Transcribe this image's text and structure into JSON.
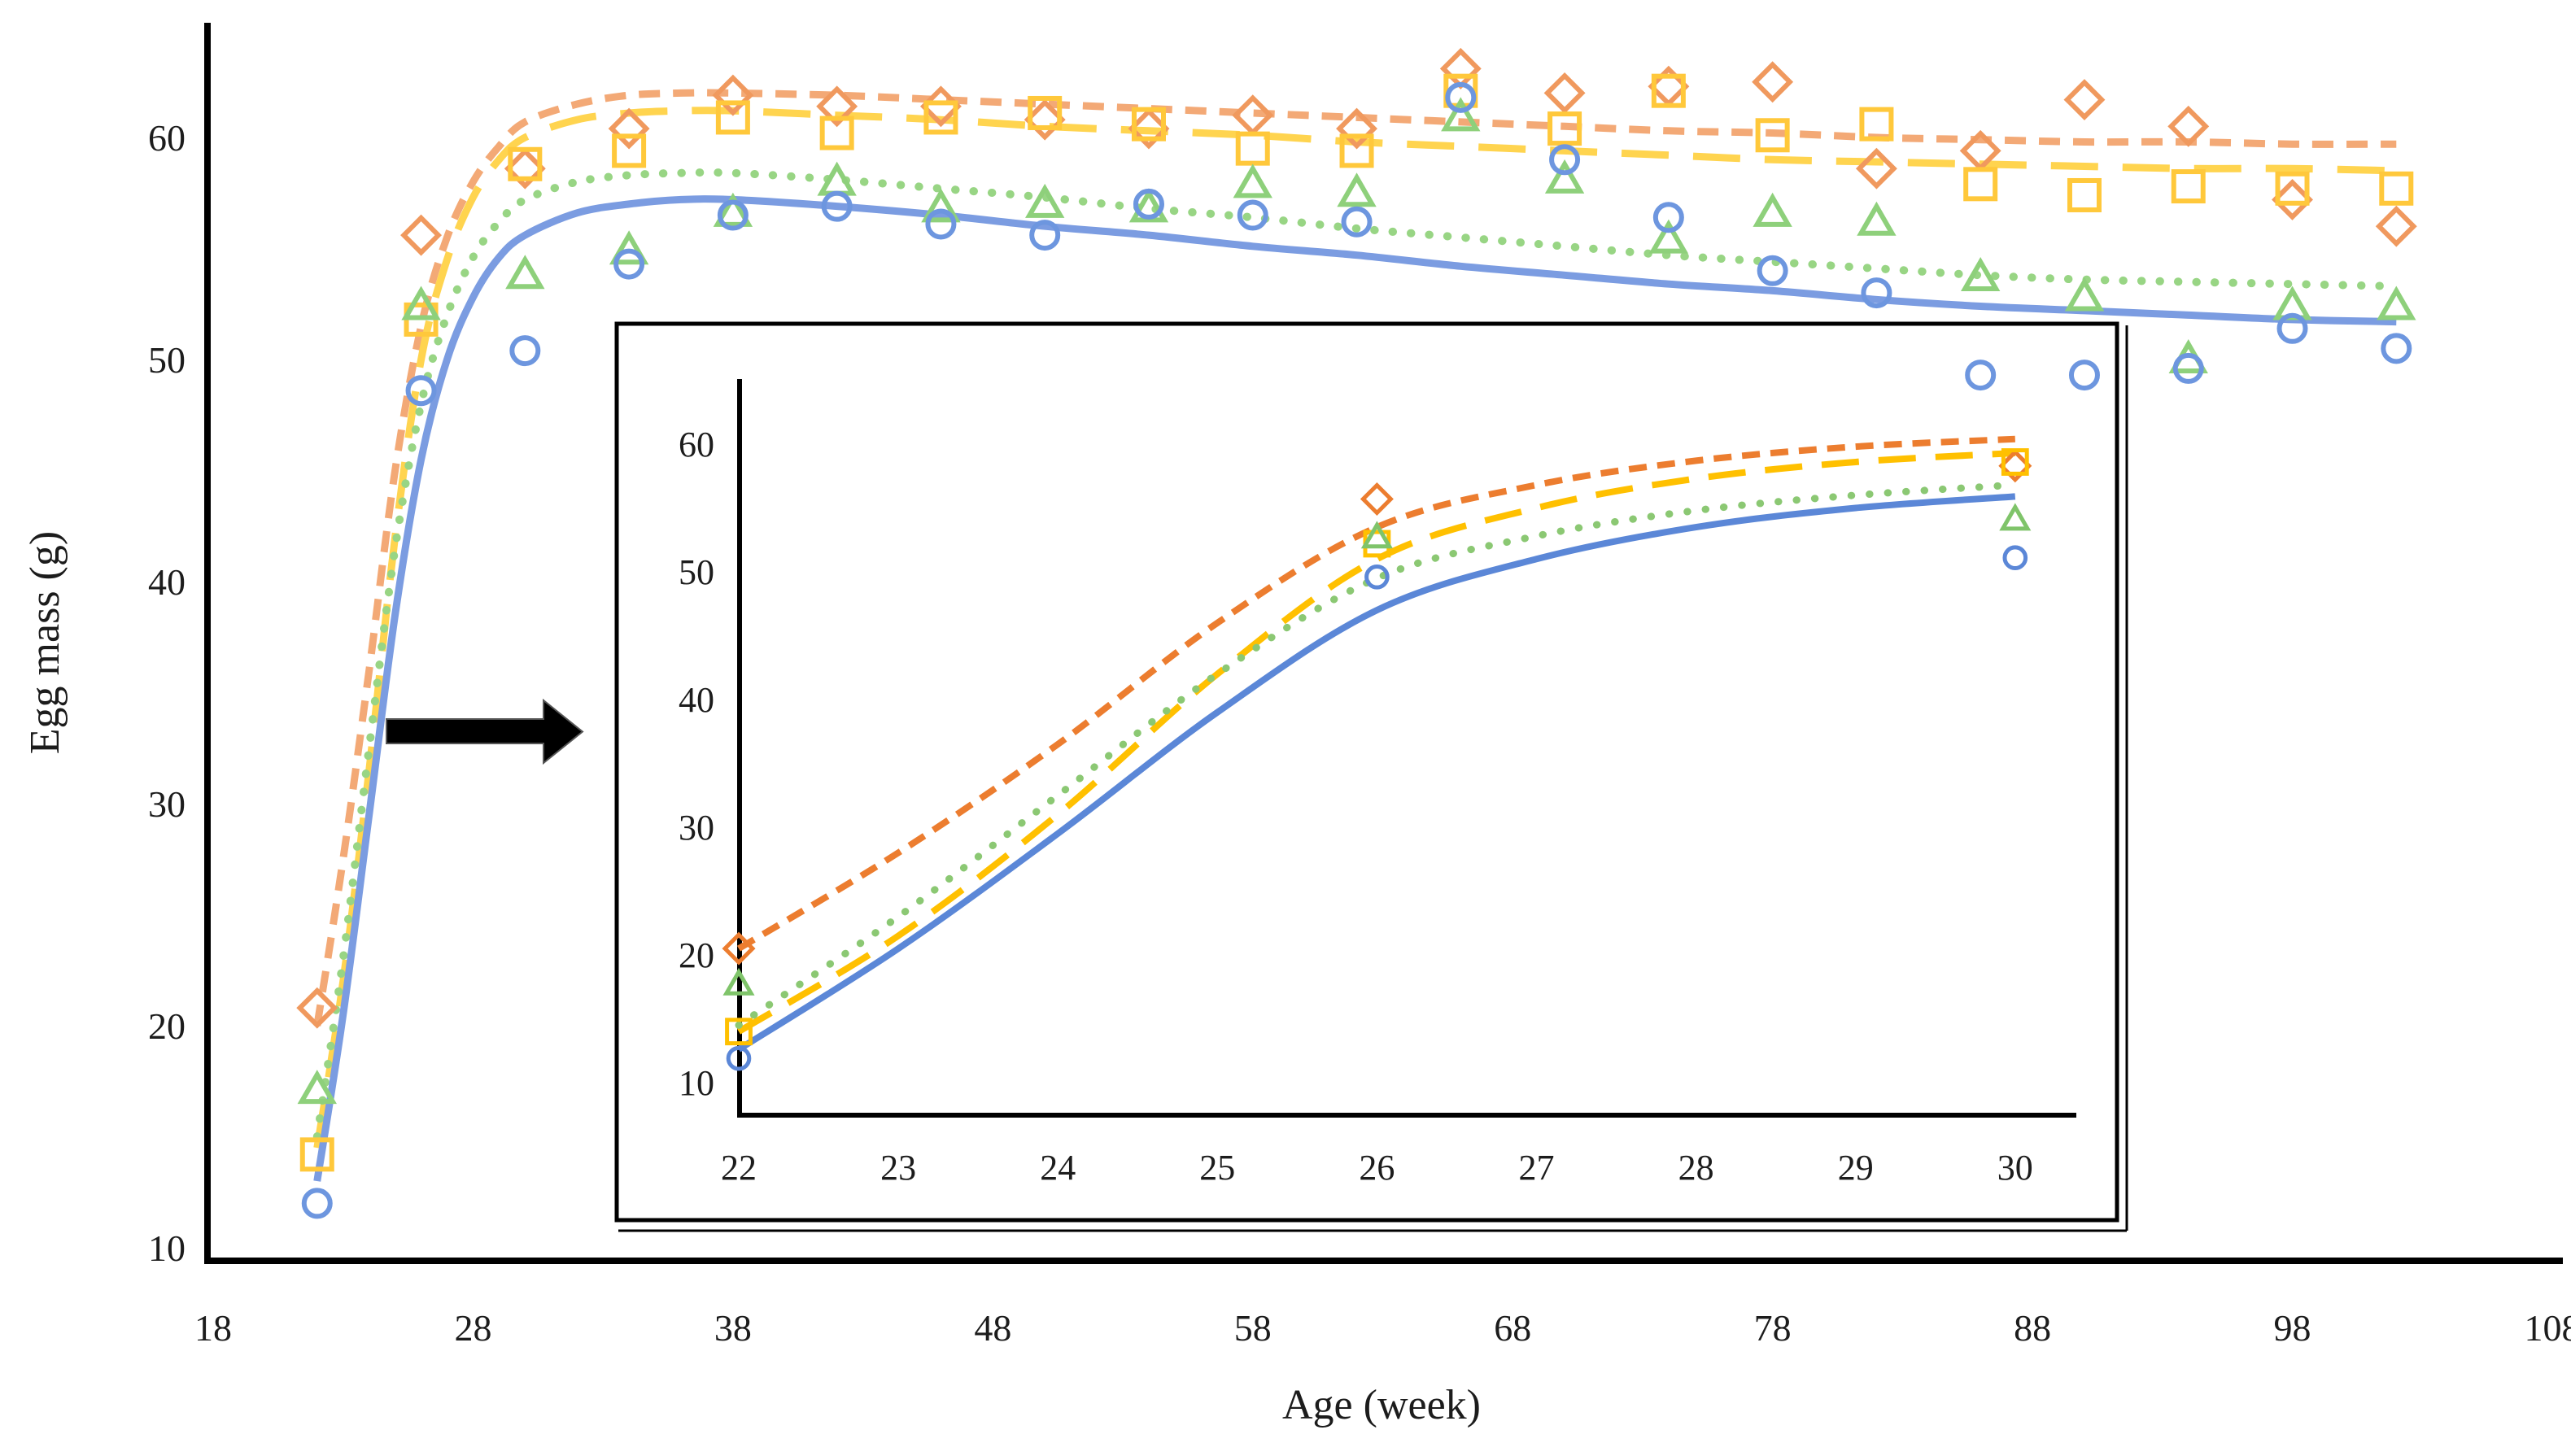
{
  "figure": {
    "background": "#ffffff",
    "arrow_icon_color": "#000000"
  },
  "chart_data": {
    "type": "scatter",
    "description_of_visual": "Egg mass versus age: four scatter series (open markers) with fitted growth curves; magnified inset for weeks 22-30 indicated by a black arrow",
    "main": {
      "xlabel": "Age (week)",
      "ylabel": "Egg mass (g)",
      "x_ticks": [
        18,
        28,
        38,
        48,
        58,
        68,
        78,
        88,
        98,
        108
      ],
      "y_ticks": [
        10,
        20,
        30,
        40,
        50,
        60
      ],
      "xlim": [
        18,
        108
      ],
      "ylim": [
        10,
        65
      ],
      "grid": false,
      "legend": "none",
      "series": [
        {
          "name": "orange-diamond-short-dash",
          "marker": "diamond",
          "line_style": "short-dash",
          "line_color": "#F3A976",
          "marker_color": "#F0995E",
          "points": [
            [
              22,
              20.8
            ],
            [
              26,
              55.6
            ],
            [
              30,
              58.6
            ],
            [
              34,
              60.4
            ],
            [
              38,
              61.9
            ],
            [
              42,
              61.4
            ],
            [
              46,
              61.4
            ],
            [
              50,
              60.8
            ],
            [
              54,
              60.4
            ],
            [
              58,
              61.0
            ],
            [
              62,
              60.4
            ],
            [
              66,
              63.1
            ],
            [
              70,
              62.0
            ],
            [
              74,
              62.3
            ],
            [
              78,
              62.5
            ],
            [
              82,
              58.6
            ],
            [
              86,
              59.4
            ],
            [
              90,
              61.7
            ],
            [
              94,
              60.5
            ],
            [
              98,
              57.2
            ],
            [
              102,
              56.0
            ]
          ],
          "curve": [
            [
              22,
              20.0
            ],
            [
              23,
              27.5
            ],
            [
              24,
              36.0
            ],
            [
              25,
              45.0
            ],
            [
              26,
              51.5
            ],
            [
              27,
              55.5
            ],
            [
              28,
              58.0
            ],
            [
              29,
              59.6
            ],
            [
              30,
              60.7
            ],
            [
              32,
              61.5
            ],
            [
              34,
              61.9
            ],
            [
              36,
              62.0
            ],
            [
              38,
              62.0
            ],
            [
              42,
              61.9
            ],
            [
              46,
              61.7
            ],
            [
              50,
              61.5
            ],
            [
              54,
              61.3
            ],
            [
              58,
              61.1
            ],
            [
              62,
              60.9
            ],
            [
              66,
              60.7
            ],
            [
              70,
              60.5
            ],
            [
              74,
              60.3
            ],
            [
              78,
              60.2
            ],
            [
              82,
              60.0
            ],
            [
              86,
              59.9
            ],
            [
              90,
              59.8
            ],
            [
              94,
              59.8
            ],
            [
              98,
              59.7
            ],
            [
              102,
              59.7
            ]
          ]
        },
        {
          "name": "yellow-square-long-dash",
          "marker": "square",
          "line_style": "long-dash",
          "line_color": "#FFD44F",
          "marker_color": "#FFC83B",
          "points": [
            [
              22,
              14.2
            ],
            [
              26,
              51.8
            ],
            [
              30,
              58.8
            ],
            [
              34,
              59.4
            ],
            [
              38,
              60.9
            ],
            [
              42,
              60.2
            ],
            [
              46,
              60.9
            ],
            [
              50,
              61.1
            ],
            [
              54,
              60.6
            ],
            [
              58,
              59.5
            ],
            [
              62,
              59.4
            ],
            [
              66,
              62.1
            ],
            [
              70,
              60.4
            ],
            [
              74,
              62.1
            ],
            [
              78,
              60.1
            ],
            [
              82,
              60.6
            ],
            [
              86,
              57.9
            ],
            [
              90,
              57.4
            ],
            [
              94,
              57.8
            ],
            [
              98,
              57.7
            ],
            [
              102,
              57.7
            ]
          ],
          "curve": [
            [
              22,
              14.5
            ],
            [
              23,
              22.0
            ],
            [
              24,
              31.5
            ],
            [
              25,
              42.0
            ],
            [
              26,
              50.0
            ],
            [
              27,
              54.5
            ],
            [
              28,
              57.3
            ],
            [
              29,
              59.0
            ],
            [
              30,
              60.0
            ],
            [
              32,
              60.8
            ],
            [
              34,
              61.1
            ],
            [
              36,
              61.2
            ],
            [
              38,
              61.2
            ],
            [
              42,
              61.0
            ],
            [
              46,
              60.8
            ],
            [
              50,
              60.5
            ],
            [
              54,
              60.3
            ],
            [
              58,
              60.1
            ],
            [
              62,
              59.8
            ],
            [
              66,
              59.6
            ],
            [
              70,
              59.4
            ],
            [
              74,
              59.2
            ],
            [
              78,
              59.0
            ],
            [
              82,
              58.9
            ],
            [
              86,
              58.8
            ],
            [
              90,
              58.7
            ],
            [
              94,
              58.6
            ],
            [
              98,
              58.6
            ],
            [
              102,
              58.5
            ]
          ]
        },
        {
          "name": "green-triangle-dotted",
          "marker": "triangle",
          "line_style": "dotted",
          "line_color": "#98D584",
          "marker_color": "#8ED07B",
          "points": [
            [
              22,
              17.1
            ],
            [
              26,
              52.4
            ],
            [
              30,
              53.8
            ],
            [
              34,
              54.9
            ],
            [
              38,
              56.6
            ],
            [
              42,
              58.0
            ],
            [
              46,
              56.8
            ],
            [
              50,
              57.0
            ],
            [
              54,
              56.8
            ],
            [
              58,
              57.9
            ],
            [
              62,
              57.5
            ],
            [
              66,
              60.9
            ],
            [
              70,
              58.1
            ],
            [
              74,
              55.4
            ],
            [
              78,
              56.6
            ],
            [
              82,
              56.2
            ],
            [
              86,
              53.7
            ],
            [
              90,
              52.8
            ],
            [
              94,
              50.0
            ],
            [
              98,
              52.4
            ],
            [
              102,
              52.4
            ]
          ],
          "curve": [
            [
              22,
              15.0
            ],
            [
              23,
              23.0
            ],
            [
              24,
              32.5
            ],
            [
              25,
              41.5
            ],
            [
              26,
              48.0
            ],
            [
              27,
              52.0
            ],
            [
              28,
              54.6
            ],
            [
              29,
              56.2
            ],
            [
              30,
              57.2
            ],
            [
              32,
              58.0
            ],
            [
              34,
              58.3
            ],
            [
              36,
              58.4
            ],
            [
              38,
              58.4
            ],
            [
              42,
              58.1
            ],
            [
              46,
              57.7
            ],
            [
              50,
              57.3
            ],
            [
              54,
              56.8
            ],
            [
              58,
              56.4
            ],
            [
              62,
              55.9
            ],
            [
              66,
              55.5
            ],
            [
              70,
              55.1
            ],
            [
              74,
              54.7
            ],
            [
              78,
              54.4
            ],
            [
              82,
              54.1
            ],
            [
              86,
              53.8
            ],
            [
              90,
              53.6
            ],
            [
              94,
              53.5
            ],
            [
              98,
              53.4
            ],
            [
              102,
              53.3
            ]
          ]
        },
        {
          "name": "blue-circle-solid",
          "marker": "circle",
          "line_style": "solid",
          "line_color": "#7B9CE1",
          "marker_color": "#6D96DF",
          "points": [
            [
              22,
              12.0
            ],
            [
              26,
              48.6
            ],
            [
              30,
              50.4
            ],
            [
              34,
              54.3
            ],
            [
              38,
              56.5
            ],
            [
              42,
              56.9
            ],
            [
              46,
              56.1
            ],
            [
              50,
              55.6
            ],
            [
              54,
              57.0
            ],
            [
              58,
              56.5
            ],
            [
              62,
              56.2
            ],
            [
              66,
              61.8
            ],
            [
              70,
              59.0
            ],
            [
              74,
              56.4
            ],
            [
              78,
              54.0
            ],
            [
              82,
              53.0
            ],
            [
              86,
              49.3
            ],
            [
              90,
              49.3
            ],
            [
              94,
              49.6
            ],
            [
              98,
              51.4
            ],
            [
              102,
              50.5
            ]
          ],
          "curve": [
            [
              22,
              13.0
            ],
            [
              23,
              20.5
            ],
            [
              24,
              29.5
            ],
            [
              25,
              38.5
            ],
            [
              26,
              45.5
            ],
            [
              27,
              50.0
            ],
            [
              28,
              52.8
            ],
            [
              29,
              54.6
            ],
            [
              30,
              55.6
            ],
            [
              32,
              56.6
            ],
            [
              34,
              57.0
            ],
            [
              36,
              57.2
            ],
            [
              38,
              57.2
            ],
            [
              42,
              56.9
            ],
            [
              46,
              56.5
            ],
            [
              50,
              56.0
            ],
            [
              54,
              55.6
            ],
            [
              58,
              55.1
            ],
            [
              62,
              54.7
            ],
            [
              66,
              54.2
            ],
            [
              70,
              53.8
            ],
            [
              74,
              53.4
            ],
            [
              78,
              53.1
            ],
            [
              82,
              52.7
            ],
            [
              86,
              52.4
            ],
            [
              90,
              52.2
            ],
            [
              94,
              52.0
            ],
            [
              98,
              51.8
            ],
            [
              102,
              51.7
            ]
          ]
        }
      ]
    },
    "inset": {
      "x_ticks": [
        22,
        23,
        24,
        25,
        26,
        27,
        28,
        29,
        30
      ],
      "y_ticks": [
        10,
        20,
        30,
        40,
        50,
        60
      ],
      "xlim": [
        22,
        30
      ],
      "ylim": [
        7.5,
        65
      ],
      "grid": false,
      "legend": "none",
      "series": [
        {
          "name": "orange-diamond-short-dash",
          "marker": "diamond",
          "line_style": "short-dash",
          "line_color": "#EC7D2F",
          "marker_color": "#EC7D2F",
          "points": [
            [
              22,
              20.5
            ],
            [
              26,
              55.7
            ],
            [
              30,
              58.3
            ]
          ],
          "curve": [
            [
              22,
              20.5
            ],
            [
              23,
              28.0
            ],
            [
              24,
              36.5
            ],
            [
              25,
              46.0
            ],
            [
              26,
              53.5
            ],
            [
              27,
              56.8
            ],
            [
              28,
              58.7
            ],
            [
              29,
              59.8
            ],
            [
              30,
              60.4
            ]
          ]
        },
        {
          "name": "yellow-square-long-dash",
          "marker": "square",
          "line_style": "long-dash",
          "line_color": "#FFC000",
          "marker_color": "#FFC000",
          "points": [
            [
              22,
              14.0
            ],
            [
              26,
              52.2
            ],
            [
              30,
              58.6
            ]
          ],
          "curve": [
            [
              22,
              14.0
            ],
            [
              23,
              21.5
            ],
            [
              24,
              31.0
            ],
            [
              25,
              42.0
            ],
            [
              26,
              51.0
            ],
            [
              27,
              55.0
            ],
            [
              28,
              57.3
            ],
            [
              29,
              58.6
            ],
            [
              30,
              59.3
            ]
          ]
        },
        {
          "name": "green-triangle-dotted",
          "marker": "triangle",
          "line_style": "dotted",
          "line_color": "#8BC873",
          "marker_color": "#7FC46A",
          "points": [
            [
              22,
              17.7
            ],
            [
              26,
              52.7
            ],
            [
              30,
              54.1
            ]
          ],
          "curve": [
            [
              22,
              14.5
            ],
            [
              23,
              23.0
            ],
            [
              24,
              32.5
            ],
            [
              25,
              42.0
            ],
            [
              26,
              49.5
            ],
            [
              27,
              52.8
            ],
            [
              28,
              54.8
            ],
            [
              29,
              56.0
            ],
            [
              30,
              56.8
            ]
          ]
        },
        {
          "name": "blue-circle-solid",
          "marker": "circle",
          "line_style": "solid",
          "line_color": "#5B87D7",
          "marker_color": "#5B87D7",
          "points": [
            [
              22,
              11.9
            ],
            [
              26,
              49.6
            ],
            [
              30,
              51.1
            ]
          ],
          "curve": [
            [
              22,
              12.6
            ],
            [
              23,
              20.5
            ],
            [
              24,
              29.5
            ],
            [
              25,
              39.0
            ],
            [
              26,
              47.0
            ],
            [
              27,
              51.0
            ],
            [
              28,
              53.5
            ],
            [
              29,
              55.0
            ],
            [
              30,
              55.9
            ]
          ]
        }
      ]
    }
  }
}
